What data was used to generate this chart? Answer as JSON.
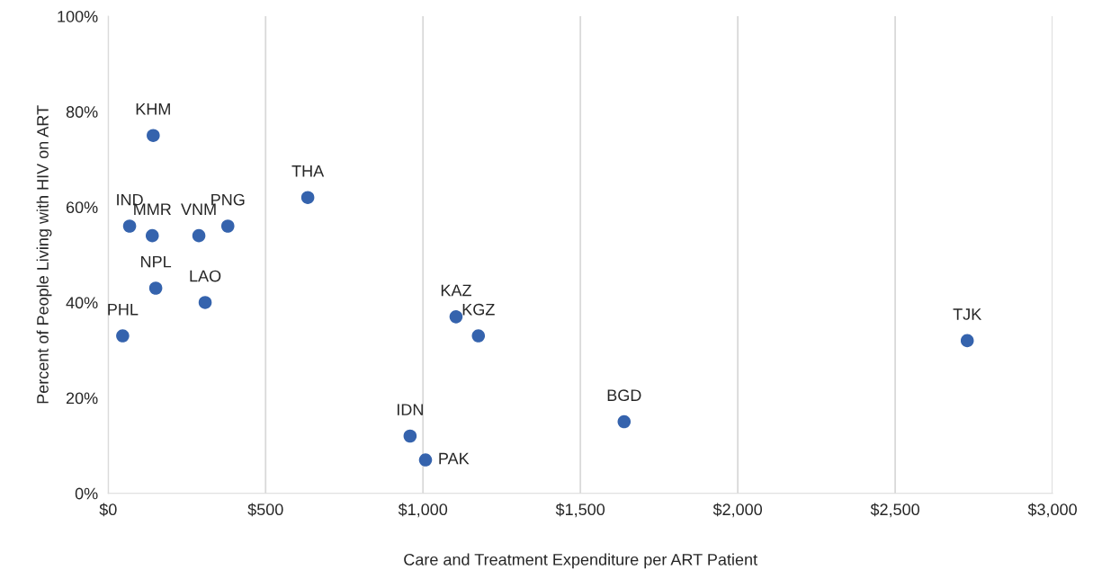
{
  "chart_data": {
    "type": "scatter",
    "xlabel": "Care and Treatment Expenditure per ART Patient",
    "ylabel": "Percent of People Living with HIV on ART",
    "series": [
      {
        "color": "#3563ad",
        "x": [
          143,
          68,
          140,
          288,
          380,
          151,
          308,
          46,
          634,
          1105,
          1176,
          959,
          1008,
          1639,
          2729
        ],
        "values": [
          75,
          56,
          54,
          54,
          56,
          43,
          40,
          33,
          62,
          37,
          33,
          12,
          7,
          15,
          32
        ]
      }
    ],
    "annotations": [
      {
        "text": "KHM",
        "x": 143,
        "y": 75
      },
      {
        "text": "IND",
        "x": 68,
        "y": 56
      },
      {
        "text": "MMR",
        "x": 140,
        "y": 54
      },
      {
        "text": "VNM",
        "x": 288,
        "y": 54
      },
      {
        "text": "PNG",
        "x": 380,
        "y": 56
      },
      {
        "text": "NPL",
        "x": 151,
        "y": 43
      },
      {
        "text": "LAO",
        "x": 308,
        "y": 40
      },
      {
        "text": "PHL",
        "x": 46,
        "y": 33
      },
      {
        "text": "THA",
        "x": 634,
        "y": 62
      },
      {
        "text": "KAZ",
        "x": 1105,
        "y": 37
      },
      {
        "text": "KGZ",
        "x": 1176,
        "y": 33
      },
      {
        "text": "IDN",
        "x": 959,
        "y": 12
      },
      {
        "text": "PAK",
        "x": 1008,
        "y": 7
      },
      {
        "text": "BGD",
        "x": 1639,
        "y": 15
      },
      {
        "text": "TJK",
        "x": 2729,
        "y": 32
      }
    ],
    "xlim": [
      0,
      3000
    ],
    "xticks": [
      {
        "value": 0,
        "label": "$0"
      },
      {
        "value": 500,
        "label": "$500"
      },
      {
        "value": 1000,
        "label": "$1,000"
      },
      {
        "value": 1500,
        "label": "$1,500"
      },
      {
        "value": 2000,
        "label": "$2,000"
      },
      {
        "value": 2500,
        "label": "$2,500"
      },
      {
        "value": 3000,
        "label": "$3,000"
      }
    ],
    "ylim": [
      0,
      100
    ],
    "yticks": [
      {
        "value": 0,
        "label": "0%"
      },
      {
        "value": 20,
        "label": "20%"
      },
      {
        "value": 40,
        "label": "40%"
      },
      {
        "value": 60,
        "label": "60%"
      },
      {
        "value": 80,
        "label": "80%"
      },
      {
        "value": 100,
        "label": "100%"
      }
    ],
    "grid": "x",
    "marker": "circle"
  }
}
